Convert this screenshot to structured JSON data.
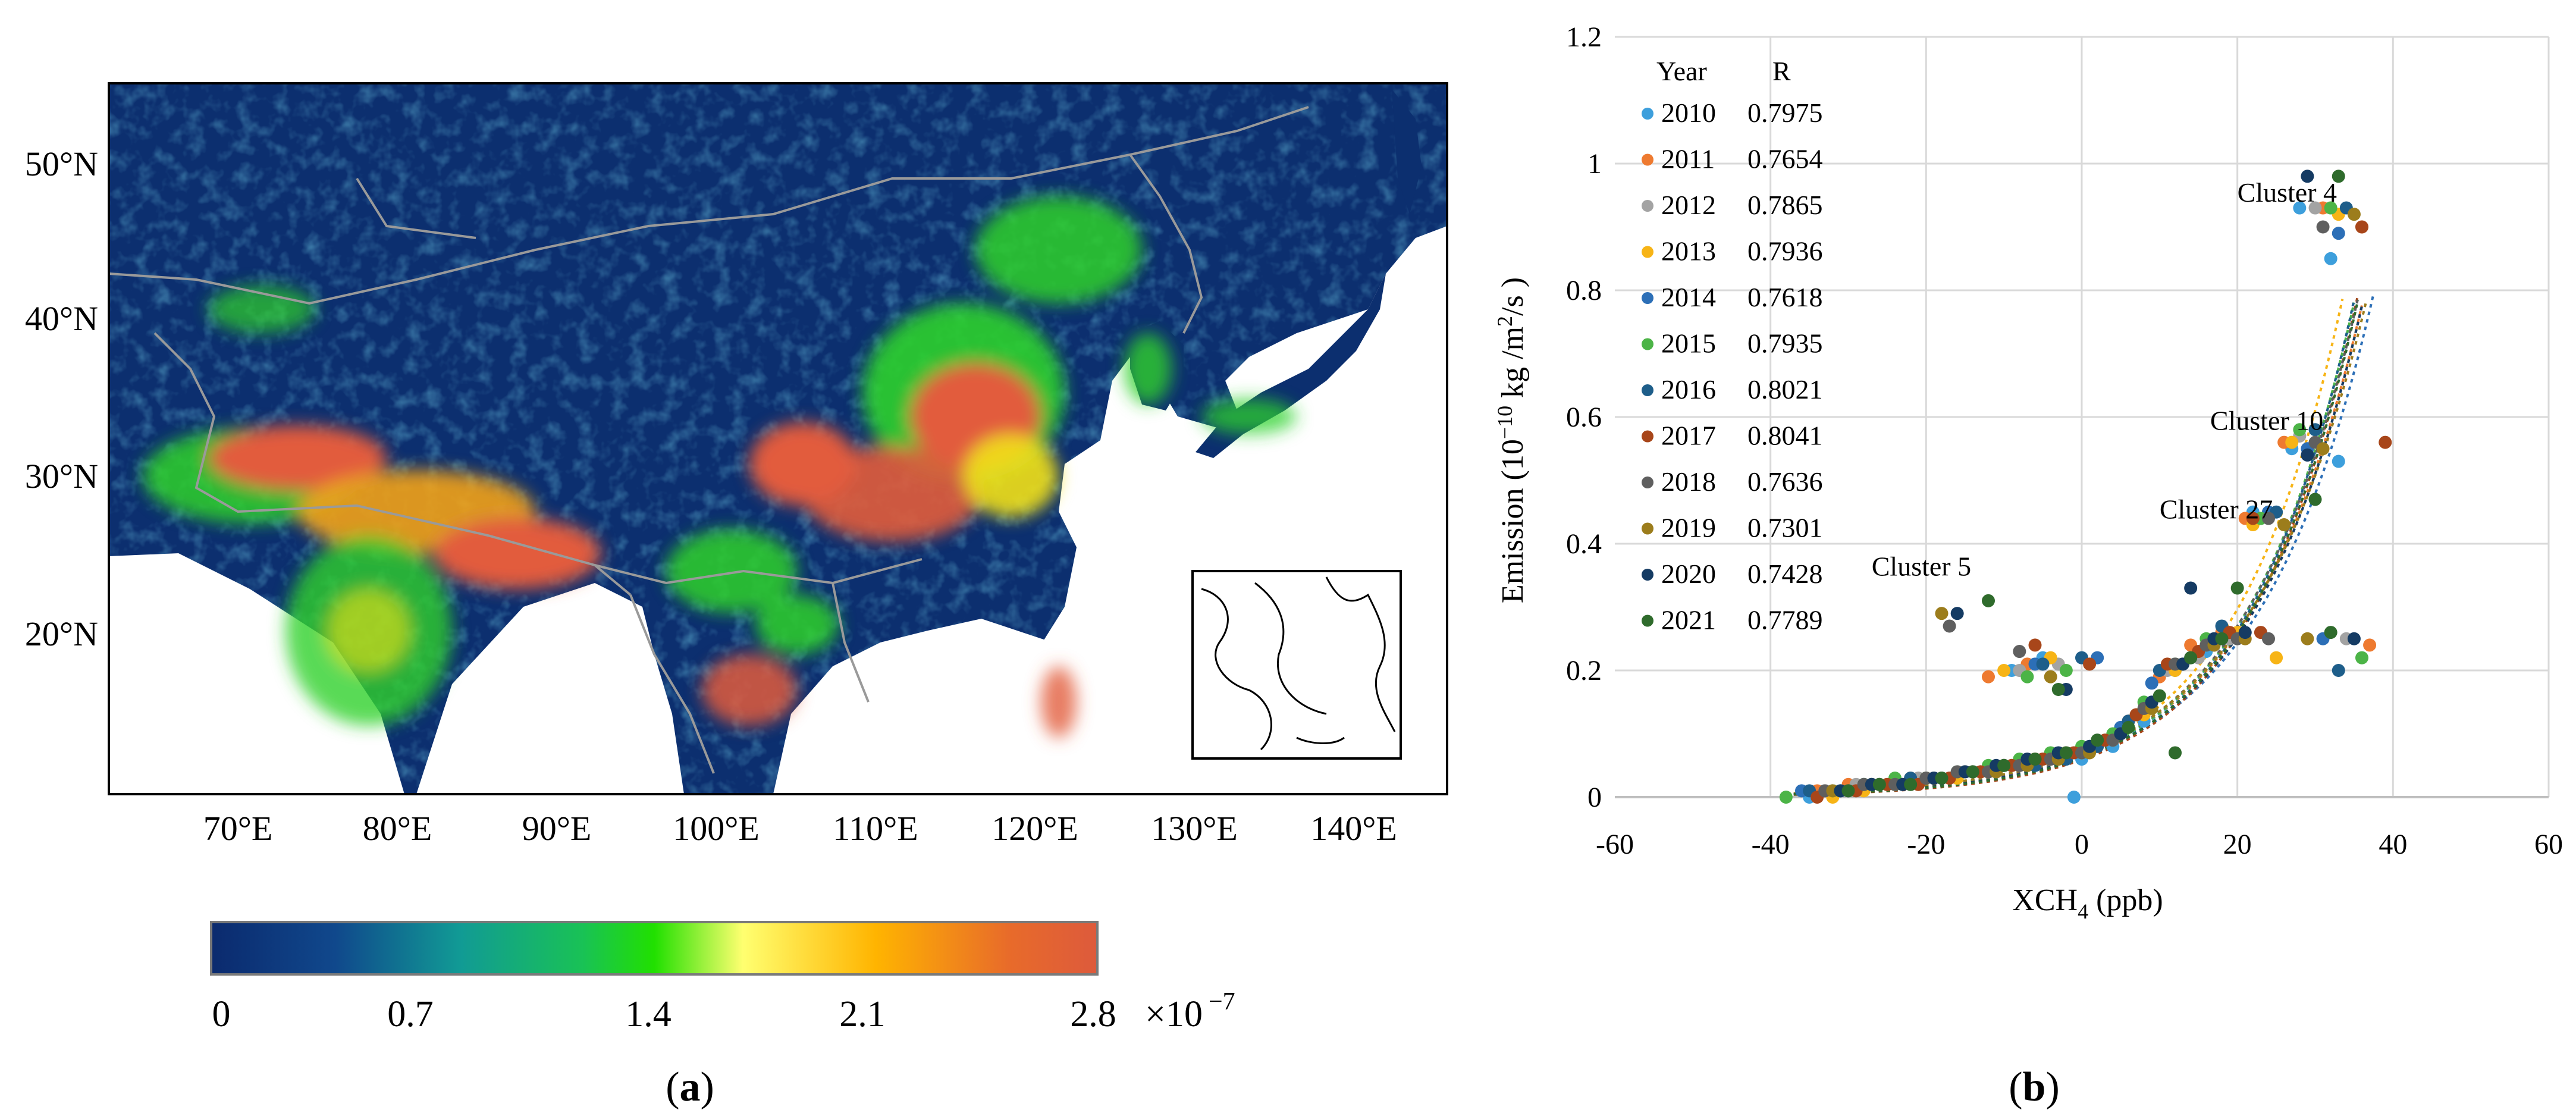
{
  "panel_a": {
    "caption": "(a)",
    "caption_letter": "a",
    "lat_labels": [
      "50°N",
      "40°N",
      "30°N",
      "20°N"
    ],
    "lon_labels": [
      "70°E",
      "80°E",
      "90°E",
      "100°E",
      "110°E",
      "120°E",
      "130°E",
      "140°E"
    ],
    "colorbar": {
      "tick_labels": [
        "0",
        "0.7",
        "1.4",
        "2.1",
        "2.8"
      ],
      "multiplier": "×10",
      "exponent": "−7",
      "colors": [
        "#0b2a6e",
        "#10488c",
        "#119a95",
        "#19c255",
        "#21e000",
        "#ffff70",
        "#ffb400",
        "#e86b2a",
        "#dd5a3c"
      ]
    },
    "map_colors": {
      "background": "#0c2f6f",
      "hotspot": "#e25c3c",
      "green": "#2fd12b",
      "yellow": "#f2e11b",
      "border": "#9a9a9a"
    }
  },
  "panel_b": {
    "caption": "(b)",
    "caption_letter": "b",
    "legend_header_year": "Year",
    "legend_header_r": "R",
    "annotations": [
      {
        "text": "Cluster 4",
        "x": 20,
        "y": 0.94
      },
      {
        "text": "Cluster 10",
        "x": 16.5,
        "y": 0.58
      },
      {
        "text": "Cluster 27",
        "x": 10,
        "y": 0.44
      },
      {
        "text": "Cluster 5",
        "x": -27,
        "y": 0.35
      }
    ]
  },
  "chart_data": {
    "type": "scatter",
    "xlabel_main": "XCH",
    "xlabel_sub": "4",
    "xlabel_unit": " (ppb)",
    "ylabel_pre": "Emission (10",
    "ylabel_sup1": "−10",
    "ylabel_mid": " kg /m",
    "ylabel_sup2": "2",
    "ylabel_post": "/s )",
    "xlim": [
      -60,
      60
    ],
    "ylim": [
      0,
      1.2
    ],
    "xticks": [
      -60,
      -40,
      -20,
      0,
      20,
      40,
      60
    ],
    "yticks": [
      0,
      0.2,
      0.4,
      0.6,
      0.8,
      1,
      1.2
    ],
    "xtick_labels": [
      "-60",
      "-40",
      "-20",
      "0",
      "20",
      "40",
      "60"
    ],
    "ytick_labels": [
      "0",
      "0.2",
      "0.4",
      "0.6",
      "0.8",
      "1",
      "1.2"
    ],
    "grid": true,
    "legend_position": "top-left",
    "series": [
      {
        "name": "2010",
        "r": "0.7975",
        "color": "#3d9fdc",
        "fit": [
          0.0643,
          0.0713
        ],
        "points": [
          [
            -35,
            0.0
          ],
          [
            -32,
            0.01
          ],
          [
            -28,
            0.02
          ],
          [
            -24,
            0.02
          ],
          [
            -20,
            0.03
          ],
          [
            -16,
            0.03
          ],
          [
            -12,
            0.04
          ],
          [
            -8,
            0.05
          ],
          [
            -4,
            0.06
          ],
          [
            0,
            0.06
          ],
          [
            4,
            0.08
          ],
          [
            8,
            0.12
          ],
          [
            12,
            0.2
          ],
          [
            16,
            0.23
          ],
          [
            18,
            0.25
          ],
          [
            -9,
            0.2
          ],
          [
            -5,
            0.22
          ],
          [
            22,
            0.45
          ],
          [
            27,
            0.55
          ],
          [
            33,
            0.53
          ],
          [
            32,
            0.85
          ],
          [
            28,
            0.93
          ],
          [
            -1,
            0.0
          ]
        ]
      },
      {
        "name": "2011",
        "r": "0.7654",
        "color": "#ee7a30",
        "fit": [
          0.0671,
          0.068
        ],
        "points": [
          [
            -34,
            0.01
          ],
          [
            -30,
            0.02
          ],
          [
            -26,
            0.02
          ],
          [
            -22,
            0.03
          ],
          [
            -18,
            0.03
          ],
          [
            -14,
            0.04
          ],
          [
            -10,
            0.05
          ],
          [
            -6,
            0.06
          ],
          [
            -2,
            0.07
          ],
          [
            2,
            0.08
          ],
          [
            6,
            0.12
          ],
          [
            10,
            0.19
          ],
          [
            14,
            0.24
          ],
          [
            18,
            0.26
          ],
          [
            -12,
            0.19
          ],
          [
            -7,
            0.21
          ],
          [
            21,
            0.44
          ],
          [
            26,
            0.56
          ],
          [
            31,
            0.93
          ],
          [
            36,
            0.9
          ],
          [
            37,
            0.24
          ]
        ]
      },
      {
        "name": "2012",
        "r": "0.7865",
        "color": "#a3a3a3",
        "fit": [
          0.0621,
          0.0702
        ],
        "points": [
          [
            -33,
            0.01
          ],
          [
            -29,
            0.02
          ],
          [
            -25,
            0.02
          ],
          [
            -21,
            0.03
          ],
          [
            -17,
            0.03
          ],
          [
            -13,
            0.04
          ],
          [
            -9,
            0.05
          ],
          [
            -5,
            0.06
          ],
          [
            -1,
            0.07
          ],
          [
            3,
            0.09
          ],
          [
            7,
            0.13
          ],
          [
            11,
            0.2
          ],
          [
            15,
            0.22
          ],
          [
            19,
            0.25
          ],
          [
            -8,
            0.2
          ],
          [
            -3,
            0.21
          ],
          [
            23,
            0.44
          ],
          [
            28,
            0.57
          ],
          [
            30,
            0.93
          ],
          [
            34,
            0.25
          ]
        ]
      },
      {
        "name": "2013",
        "r": "0.7936",
        "color": "#f7b416",
        "fit": [
          0.07,
          0.0722
        ],
        "points": [
          [
            -32,
            0.0
          ],
          [
            -28,
            0.01
          ],
          [
            -24,
            0.02
          ],
          [
            -20,
            0.03
          ],
          [
            -16,
            0.03
          ],
          [
            -12,
            0.04
          ],
          [
            -8,
            0.05
          ],
          [
            -4,
            0.06
          ],
          [
            0,
            0.07
          ],
          [
            4,
            0.09
          ],
          [
            8,
            0.13
          ],
          [
            12,
            0.2
          ],
          [
            16,
            0.24
          ],
          [
            20,
            0.26
          ],
          [
            -10,
            0.2
          ],
          [
            -4,
            0.22
          ],
          [
            22,
            0.43
          ],
          [
            27,
            0.56
          ],
          [
            33,
            0.92
          ],
          [
            25,
            0.22
          ]
        ]
      },
      {
        "name": "2014",
        "r": "0.7618",
        "color": "#2c6fb7",
        "fit": [
          0.0632,
          0.0675
        ],
        "points": [
          [
            -36,
            0.01
          ],
          [
            -31,
            0.01
          ],
          [
            -27,
            0.02
          ],
          [
            -23,
            0.02
          ],
          [
            -19,
            0.03
          ],
          [
            -15,
            0.04
          ],
          [
            -11,
            0.04
          ],
          [
            -7,
            0.05
          ],
          [
            -3,
            0.06
          ],
          [
            1,
            0.08
          ],
          [
            5,
            0.11
          ],
          [
            9,
            0.18
          ],
          [
            13,
            0.21
          ],
          [
            17,
            0.24
          ],
          [
            -6,
            0.21
          ],
          [
            2,
            0.22
          ],
          [
            24,
            0.45
          ],
          [
            29,
            0.55
          ],
          [
            33,
            0.89
          ],
          [
            31,
            0.25
          ]
        ]
      },
      {
        "name": "2015",
        "r": "0.7935",
        "color": "#4cb447",
        "fit": [
          0.0655,
          0.0708
        ],
        "points": [
          [
            -38,
            0.0
          ],
          [
            -32,
            0.01
          ],
          [
            -28,
            0.02
          ],
          [
            -24,
            0.03
          ],
          [
            -20,
            0.03
          ],
          [
            -16,
            0.04
          ],
          [
            -12,
            0.05
          ],
          [
            -8,
            0.06
          ],
          [
            -4,
            0.07
          ],
          [
            0,
            0.08
          ],
          [
            4,
            0.1
          ],
          [
            8,
            0.15
          ],
          [
            12,
            0.21
          ],
          [
            16,
            0.25
          ],
          [
            -7,
            0.19
          ],
          [
            -2,
            0.2
          ],
          [
            23,
            0.44
          ],
          [
            28,
            0.58
          ],
          [
            32,
            0.93
          ],
          [
            36,
            0.22
          ]
        ]
      },
      {
        "name": "2016",
        "r": "0.8021",
        "color": "#1e5e8a",
        "fit": [
          0.061,
          0.073
        ],
        "points": [
          [
            -35,
            0.01
          ],
          [
            -30,
            0.01
          ],
          [
            -26,
            0.02
          ],
          [
            -22,
            0.03
          ],
          [
            -18,
            0.03
          ],
          [
            -14,
            0.04
          ],
          [
            -10,
            0.05
          ],
          [
            -6,
            0.05
          ],
          [
            -2,
            0.06
          ],
          [
            2,
            0.08
          ],
          [
            6,
            0.12
          ],
          [
            10,
            0.2
          ],
          [
            14,
            0.22
          ],
          [
            18,
            0.27
          ],
          [
            -5,
            0.21
          ],
          [
            0,
            0.22
          ],
          [
            25,
            0.45
          ],
          [
            30,
            0.58
          ],
          [
            34,
            0.93
          ],
          [
            33,
            0.2
          ]
        ]
      },
      {
        "name": "2017",
        "r": "0.8041",
        "color": "#a8461a",
        "fit": [
          0.059,
          0.0732
        ],
        "points": [
          [
            -34,
            0.0
          ],
          [
            -29,
            0.01
          ],
          [
            -25,
            0.02
          ],
          [
            -21,
            0.02
          ],
          [
            -17,
            0.03
          ],
          [
            -13,
            0.04
          ],
          [
            -9,
            0.05
          ],
          [
            -5,
            0.06
          ],
          [
            -1,
            0.07
          ],
          [
            3,
            0.09
          ],
          [
            7,
            0.13
          ],
          [
            11,
            0.21
          ],
          [
            15,
            0.23
          ],
          [
            19,
            0.26
          ],
          [
            -6,
            0.24
          ],
          [
            1,
            0.21
          ],
          [
            22,
            0.44
          ],
          [
            39,
            0.56
          ],
          [
            36,
            0.9
          ],
          [
            23,
            0.26
          ]
        ]
      },
      {
        "name": "2018",
        "r": "0.7636",
        "color": "#5f5f5f",
        "fit": [
          0.068,
          0.069
        ],
        "points": [
          [
            -33,
            0.01
          ],
          [
            -28,
            0.02
          ],
          [
            -24,
            0.02
          ],
          [
            -20,
            0.03
          ],
          [
            -16,
            0.04
          ],
          [
            -12,
            0.04
          ],
          [
            -8,
            0.05
          ],
          [
            -4,
            0.06
          ],
          [
            0,
            0.07
          ],
          [
            4,
            0.09
          ],
          [
            8,
            0.14
          ],
          [
            12,
            0.21
          ],
          [
            16,
            0.24
          ],
          [
            20,
            0.25
          ],
          [
            -17,
            0.27
          ],
          [
            -8,
            0.23
          ],
          [
            24,
            0.44
          ],
          [
            30,
            0.56
          ],
          [
            31,
            0.9
          ],
          [
            24,
            0.25
          ]
        ]
      },
      {
        "name": "2019",
        "r": "0.7301",
        "color": "#9c7d1c",
        "fit": [
          0.0701,
          0.066
        ],
        "points": [
          [
            -32,
            0.01
          ],
          [
            -27,
            0.02
          ],
          [
            -23,
            0.02
          ],
          [
            -19,
            0.03
          ],
          [
            -15,
            0.04
          ],
          [
            -11,
            0.04
          ],
          [
            -7,
            0.05
          ],
          [
            -3,
            0.06
          ],
          [
            1,
            0.07
          ],
          [
            5,
            0.1
          ],
          [
            9,
            0.14
          ],
          [
            13,
            0.21
          ],
          [
            17,
            0.24
          ],
          [
            21,
            0.25
          ],
          [
            -18,
            0.29
          ],
          [
            -4,
            0.19
          ],
          [
            26,
            0.43
          ],
          [
            31,
            0.55
          ],
          [
            35,
            0.92
          ],
          [
            29,
            0.25
          ]
        ]
      },
      {
        "name": "2020",
        "r": "0.7428",
        "color": "#153b63",
        "fit": [
          0.0628,
          0.0698
        ],
        "points": [
          [
            -31,
            0.01
          ],
          [
            -27,
            0.02
          ],
          [
            -23,
            0.02
          ],
          [
            -19,
            0.03
          ],
          [
            -15,
            0.04
          ],
          [
            -11,
            0.05
          ],
          [
            -7,
            0.06
          ],
          [
            -3,
            0.07
          ],
          [
            1,
            0.08
          ],
          [
            5,
            0.1
          ],
          [
            9,
            0.15
          ],
          [
            13,
            0.21
          ],
          [
            17,
            0.25
          ],
          [
            21,
            0.26
          ],
          [
            -16,
            0.29
          ],
          [
            -2,
            0.17
          ],
          [
            14,
            0.33
          ],
          [
            29,
            0.54
          ],
          [
            29,
            0.98
          ],
          [
            35,
            0.25
          ]
        ]
      },
      {
        "name": "2021",
        "r": "0.7789",
        "color": "#2f6b2c",
        "fit": [
          0.0618,
          0.0716
        ],
        "points": [
          [
            -30,
            0.01
          ],
          [
            -26,
            0.02
          ],
          [
            -22,
            0.02
          ],
          [
            -18,
            0.03
          ],
          [
            -14,
            0.04
          ],
          [
            -10,
            0.05
          ],
          [
            -6,
            0.06
          ],
          [
            -2,
            0.07
          ],
          [
            2,
            0.09
          ],
          [
            6,
            0.11
          ],
          [
            10,
            0.16
          ],
          [
            14,
            0.22
          ],
          [
            18,
            0.25
          ],
          [
            20,
            0.33
          ],
          [
            -12,
            0.31
          ],
          [
            -3,
            0.17
          ],
          [
            12,
            0.07
          ],
          [
            30,
            0.47
          ],
          [
            33,
            0.98
          ],
          [
            32,
            0.26
          ]
        ]
      }
    ]
  }
}
